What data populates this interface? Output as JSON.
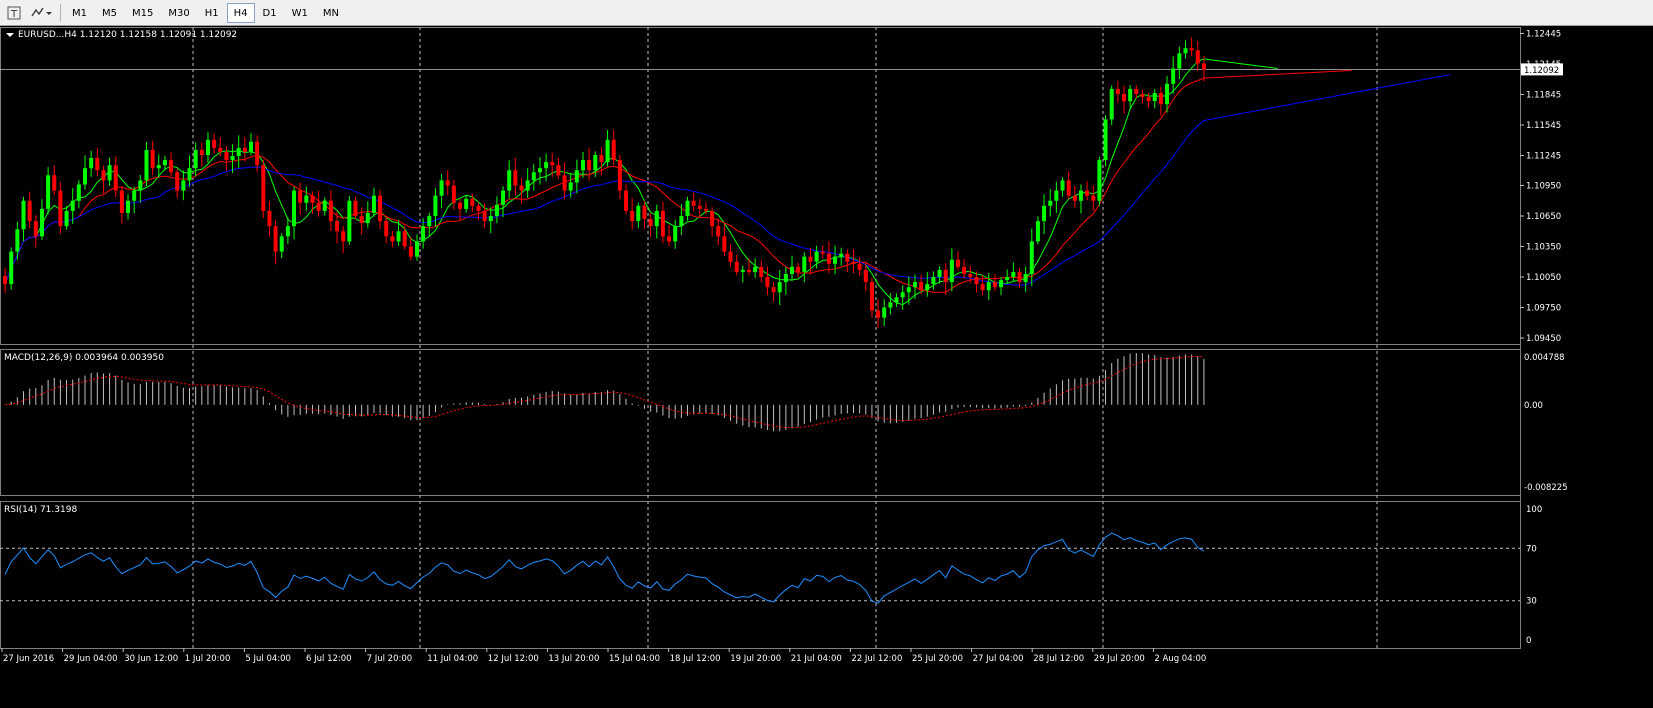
{
  "toolbar": {
    "icons": [
      "text-tool-icon",
      "objects-dropdown-icon"
    ],
    "timeframes": [
      {
        "label": "M1",
        "active": false
      },
      {
        "label": "M5",
        "active": false
      },
      {
        "label": "M15",
        "active": false
      },
      {
        "label": "M30",
        "active": false
      },
      {
        "label": "H1",
        "active": false
      },
      {
        "label": "H4",
        "active": true
      },
      {
        "label": "D1",
        "active": false
      },
      {
        "label": "W1",
        "active": false
      },
      {
        "label": "MN",
        "active": false
      }
    ]
  },
  "main_panel": {
    "header": "EURUSD...H4  1.12120 1.12158 1.12091 1.12092",
    "price_labels": [
      "1.12445",
      "1.12145",
      "1.11845",
      "1.11545",
      "1.11245",
      "1.10950",
      "1.10650",
      "1.10350",
      "1.10050",
      "1.09750",
      "1.09450"
    ],
    "current_price": "1.12092"
  },
  "macd_panel": {
    "header": "MACD(12,26,9) 0.003964 0.003950",
    "labels": [
      "0.004788",
      "0.00",
      "-0.008225"
    ]
  },
  "rsi_panel": {
    "header": "RSI(14) 71.3198",
    "labels": [
      "100",
      "70",
      "30",
      "0"
    ]
  },
  "time_axis": [
    "27 Jun 2016",
    "29 Jun 04:00",
    "30 Jun 12:00",
    "1 Jul 20:00",
    "5 Jul 04:00",
    "6 Jul 12:00",
    "7 Jul 20:00",
    "11 Jul 04:00",
    "12 Jul 12:00",
    "13 Jul 20:00",
    "15 Jul 04:00",
    "18 Jul 12:00",
    "19 Jul 20:00",
    "21 Jul 04:00",
    "22 Jul 12:00",
    "25 Jul 20:00",
    "27 Jul 04:00",
    "28 Jul 12:00",
    "29 Jul 20:00",
    "2 Aug 04:00"
  ],
  "colors": {
    "background": "#000000",
    "bull_candle": "#00ff00",
    "bear_candle": "#ff0000",
    "ma_fast": "#00ff00",
    "ma_mid": "#ff0000",
    "ma_slow": "#0000ff",
    "grid": "#c0c0c0",
    "macd_hist": "#c0c0c0",
    "macd_signal": "#ff0000",
    "rsi_line": "#1e90ff"
  },
  "chart_data": {
    "type": "candlestick",
    "symbol": "EURUSD",
    "timeframe": "H4",
    "ylim": [
      1.0945,
      1.1245
    ],
    "closes": [
      1.0998,
      1.103,
      1.1052,
      1.108,
      1.106,
      1.1045,
      1.1072,
      1.1105,
      1.109,
      1.1055,
      1.107,
      1.108,
      1.1096,
      1.1112,
      1.1122,
      1.111,
      1.11,
      1.1115,
      1.109,
      1.1068,
      1.108,
      1.109,
      1.11,
      1.113,
      1.1112,
      1.1115,
      1.112,
      1.1108,
      1.109,
      1.11,
      1.1112,
      1.113,
      1.1125,
      1.114,
      1.1132,
      1.1128,
      1.112,
      1.1124,
      1.1132,
      1.1128,
      1.1138,
      1.1115,
      1.107,
      1.1055,
      1.103,
      1.1045,
      1.1055,
      1.109,
      1.1078,
      1.1085,
      1.1078,
      1.107,
      1.108,
      1.106,
      1.105,
      1.104,
      1.108,
      1.1065,
      1.1058,
      1.1068,
      1.1085,
      1.106,
      1.1045,
      1.104,
      1.105,
      1.1035,
      1.1025,
      1.104,
      1.1055,
      1.1065,
      1.1085,
      1.11,
      1.1095,
      1.1078,
      1.1072,
      1.1082,
      1.1075,
      1.107,
      1.106,
      1.1065,
      1.1076,
      1.109,
      1.111,
      1.1095,
      1.109,
      1.11,
      1.1108,
      1.1112,
      1.1118,
      1.1115,
      1.1105,
      1.109,
      1.1098,
      1.111,
      1.112,
      1.111,
      1.1125,
      1.1118,
      1.114,
      1.112,
      1.109,
      1.107,
      1.106,
      1.1075,
      1.1062,
      1.1055,
      1.107,
      1.1045,
      1.104,
      1.1055,
      1.1065,
      1.108,
      1.1075,
      1.1072,
      1.107,
      1.1055,
      1.1045,
      1.103,
      1.102,
      1.101,
      1.1012,
      1.101,
      1.1015,
      1.1005,
      1.0995,
      1.099,
      1.1,
      1.1008,
      1.1015,
      1.101,
      1.1025,
      1.102,
      1.103,
      1.1028,
      1.1018,
      1.1025,
      1.1028,
      1.102,
      1.1018,
      1.1012,
      1.1,
      1.0972,
      1.0965,
      1.0975,
      1.098,
      1.0985,
      1.099,
      1.0995,
      1.1,
      1.0992,
      1.0998,
      1.1005,
      1.1012,
      1.1,
      1.1022,
      1.1015,
      1.1008,
      1.1005,
      1.0998,
      1.0992,
      1.1,
      1.0995,
      1.1002,
      1.1005,
      1.101,
      1.1,
      1.1008,
      1.104,
      1.106,
      1.1075,
      1.108,
      1.109,
      1.11,
      1.1085,
      1.108,
      1.109,
      1.1085,
      1.108,
      1.112,
      1.116,
      1.119,
      1.1185,
      1.1178,
      1.119,
      1.1185,
      1.1182,
      1.1178,
      1.1186,
      1.1175,
      1.1195,
      1.121,
      1.1225,
      1.123,
      1.1228,
      1.1215,
      1.1209
    ],
    "macd": {
      "header_values": [
        0.003964,
        0.00395
      ],
      "ylim": [
        -0.008225,
        0.004788
      ]
    },
    "rsi": {
      "period": 14,
      "last": 71.3198,
      "levels": [
        70,
        30
      ],
      "ylim": [
        0,
        100
      ]
    }
  }
}
